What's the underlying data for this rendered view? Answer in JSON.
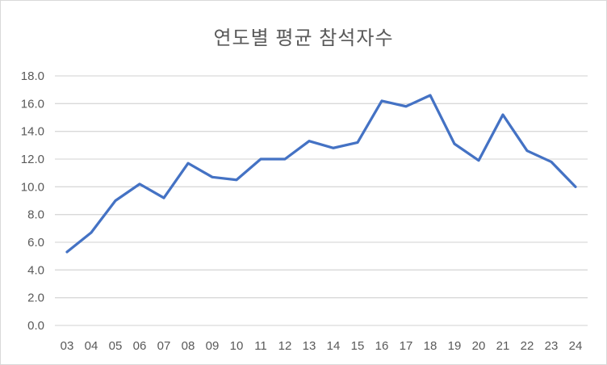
{
  "chart_data": {
    "type": "line",
    "title": "연도별 평균 참석자수",
    "categories": [
      "03",
      "04",
      "05",
      "06",
      "07",
      "08",
      "09",
      "10",
      "11",
      "12",
      "13",
      "14",
      "15",
      "16",
      "17",
      "18",
      "19",
      "20",
      "21",
      "22",
      "23",
      "24"
    ],
    "values": [
      5.3,
      6.7,
      9.0,
      10.2,
      9.2,
      11.7,
      10.7,
      10.5,
      12.0,
      12.0,
      13.3,
      12.8,
      13.2,
      16.2,
      15.8,
      16.6,
      13.1,
      11.9,
      15.2,
      12.6,
      11.8,
      10.0
    ],
    "xlabel": "",
    "ylabel": "",
    "ylim": [
      0,
      18
    ],
    "y_tick_step": 2,
    "y_tick_labels": [
      "0.0",
      "2.0",
      "4.0",
      "6.0",
      "8.0",
      "10.0",
      "12.0",
      "14.0",
      "16.0",
      "18.0"
    ],
    "grid": true,
    "legend_position": "none",
    "colors": {
      "line": "#4472C4",
      "gridline": "#D9D9D9",
      "text": "#595959",
      "frame_border": "#D9D9D9",
      "background": "#FFFFFF"
    }
  }
}
